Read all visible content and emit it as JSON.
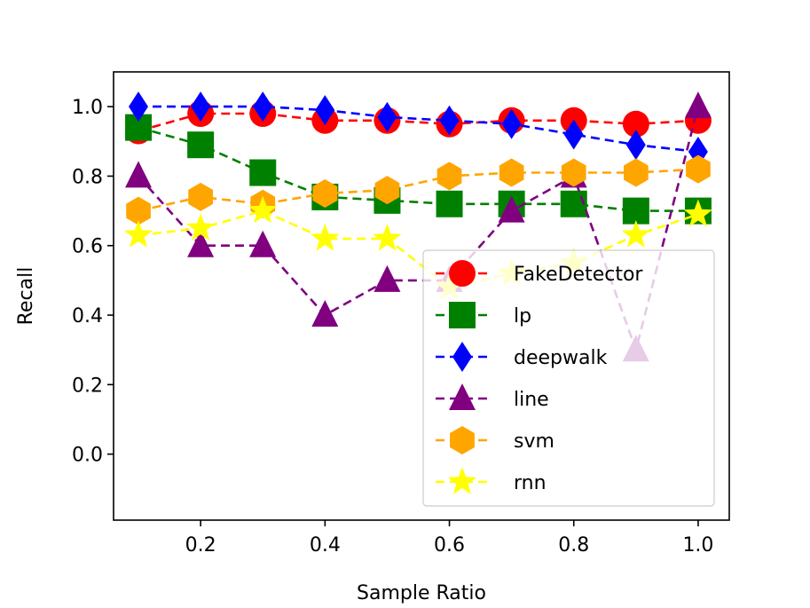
{
  "chart_data": {
    "type": "line",
    "title": "",
    "xlabel": "Sample Ratio",
    "ylabel": "Recall",
    "xlim": [
      0.06,
      1.05
    ],
    "ylim": [
      -0.19,
      1.1
    ],
    "grid": false,
    "legend_position": "lower-right",
    "x": [
      0.1,
      0.2,
      0.3,
      0.4,
      0.5,
      0.6,
      0.7,
      0.8,
      0.9,
      1.0
    ],
    "x_ticks": [
      "0.2",
      "0.4",
      "0.6",
      "0.8",
      "1.0"
    ],
    "x_tick_values": [
      0.2,
      0.4,
      0.6,
      0.8,
      1.0
    ],
    "y_ticks": [
      "0.0",
      "0.2",
      "0.4",
      "0.6",
      "0.8",
      "1.0"
    ],
    "y_tick_values": [
      0.0,
      0.2,
      0.4,
      0.6,
      0.8,
      1.0
    ],
    "series": [
      {
        "name": "FakeDetector",
        "color": "#ff0000",
        "marker": "circle",
        "values": [
          0.93,
          0.98,
          0.98,
          0.96,
          0.96,
          0.95,
          0.96,
          0.96,
          0.95,
          0.96
        ]
      },
      {
        "name": "lp",
        "color": "#008000",
        "marker": "square",
        "values": [
          0.94,
          0.89,
          0.81,
          0.74,
          0.73,
          0.72,
          0.72,
          0.72,
          0.7,
          0.7
        ]
      },
      {
        "name": "deepwalk",
        "color": "#0000ff",
        "marker": "diamond",
        "values": [
          1.0,
          1.0,
          1.0,
          0.99,
          0.97,
          0.96,
          0.95,
          0.92,
          0.89,
          0.87
        ]
      },
      {
        "name": "line",
        "color": "#800080",
        "marker": "triangle",
        "values": [
          0.8,
          0.6,
          0.6,
          0.4,
          0.5,
          0.5,
          0.7,
          0.8,
          0.3,
          1.0
        ]
      },
      {
        "name": "svm",
        "color": "#ffa500",
        "marker": "hexagon",
        "values": [
          0.7,
          0.74,
          0.72,
          0.75,
          0.76,
          0.8,
          0.81,
          0.81,
          0.81,
          0.82
        ]
      },
      {
        "name": "rnn",
        "color": "#ffff00",
        "marker": "star",
        "values": [
          0.63,
          0.65,
          0.7,
          0.62,
          0.62,
          0.48,
          0.52,
          0.55,
          0.63,
          0.69
        ]
      }
    ]
  }
}
